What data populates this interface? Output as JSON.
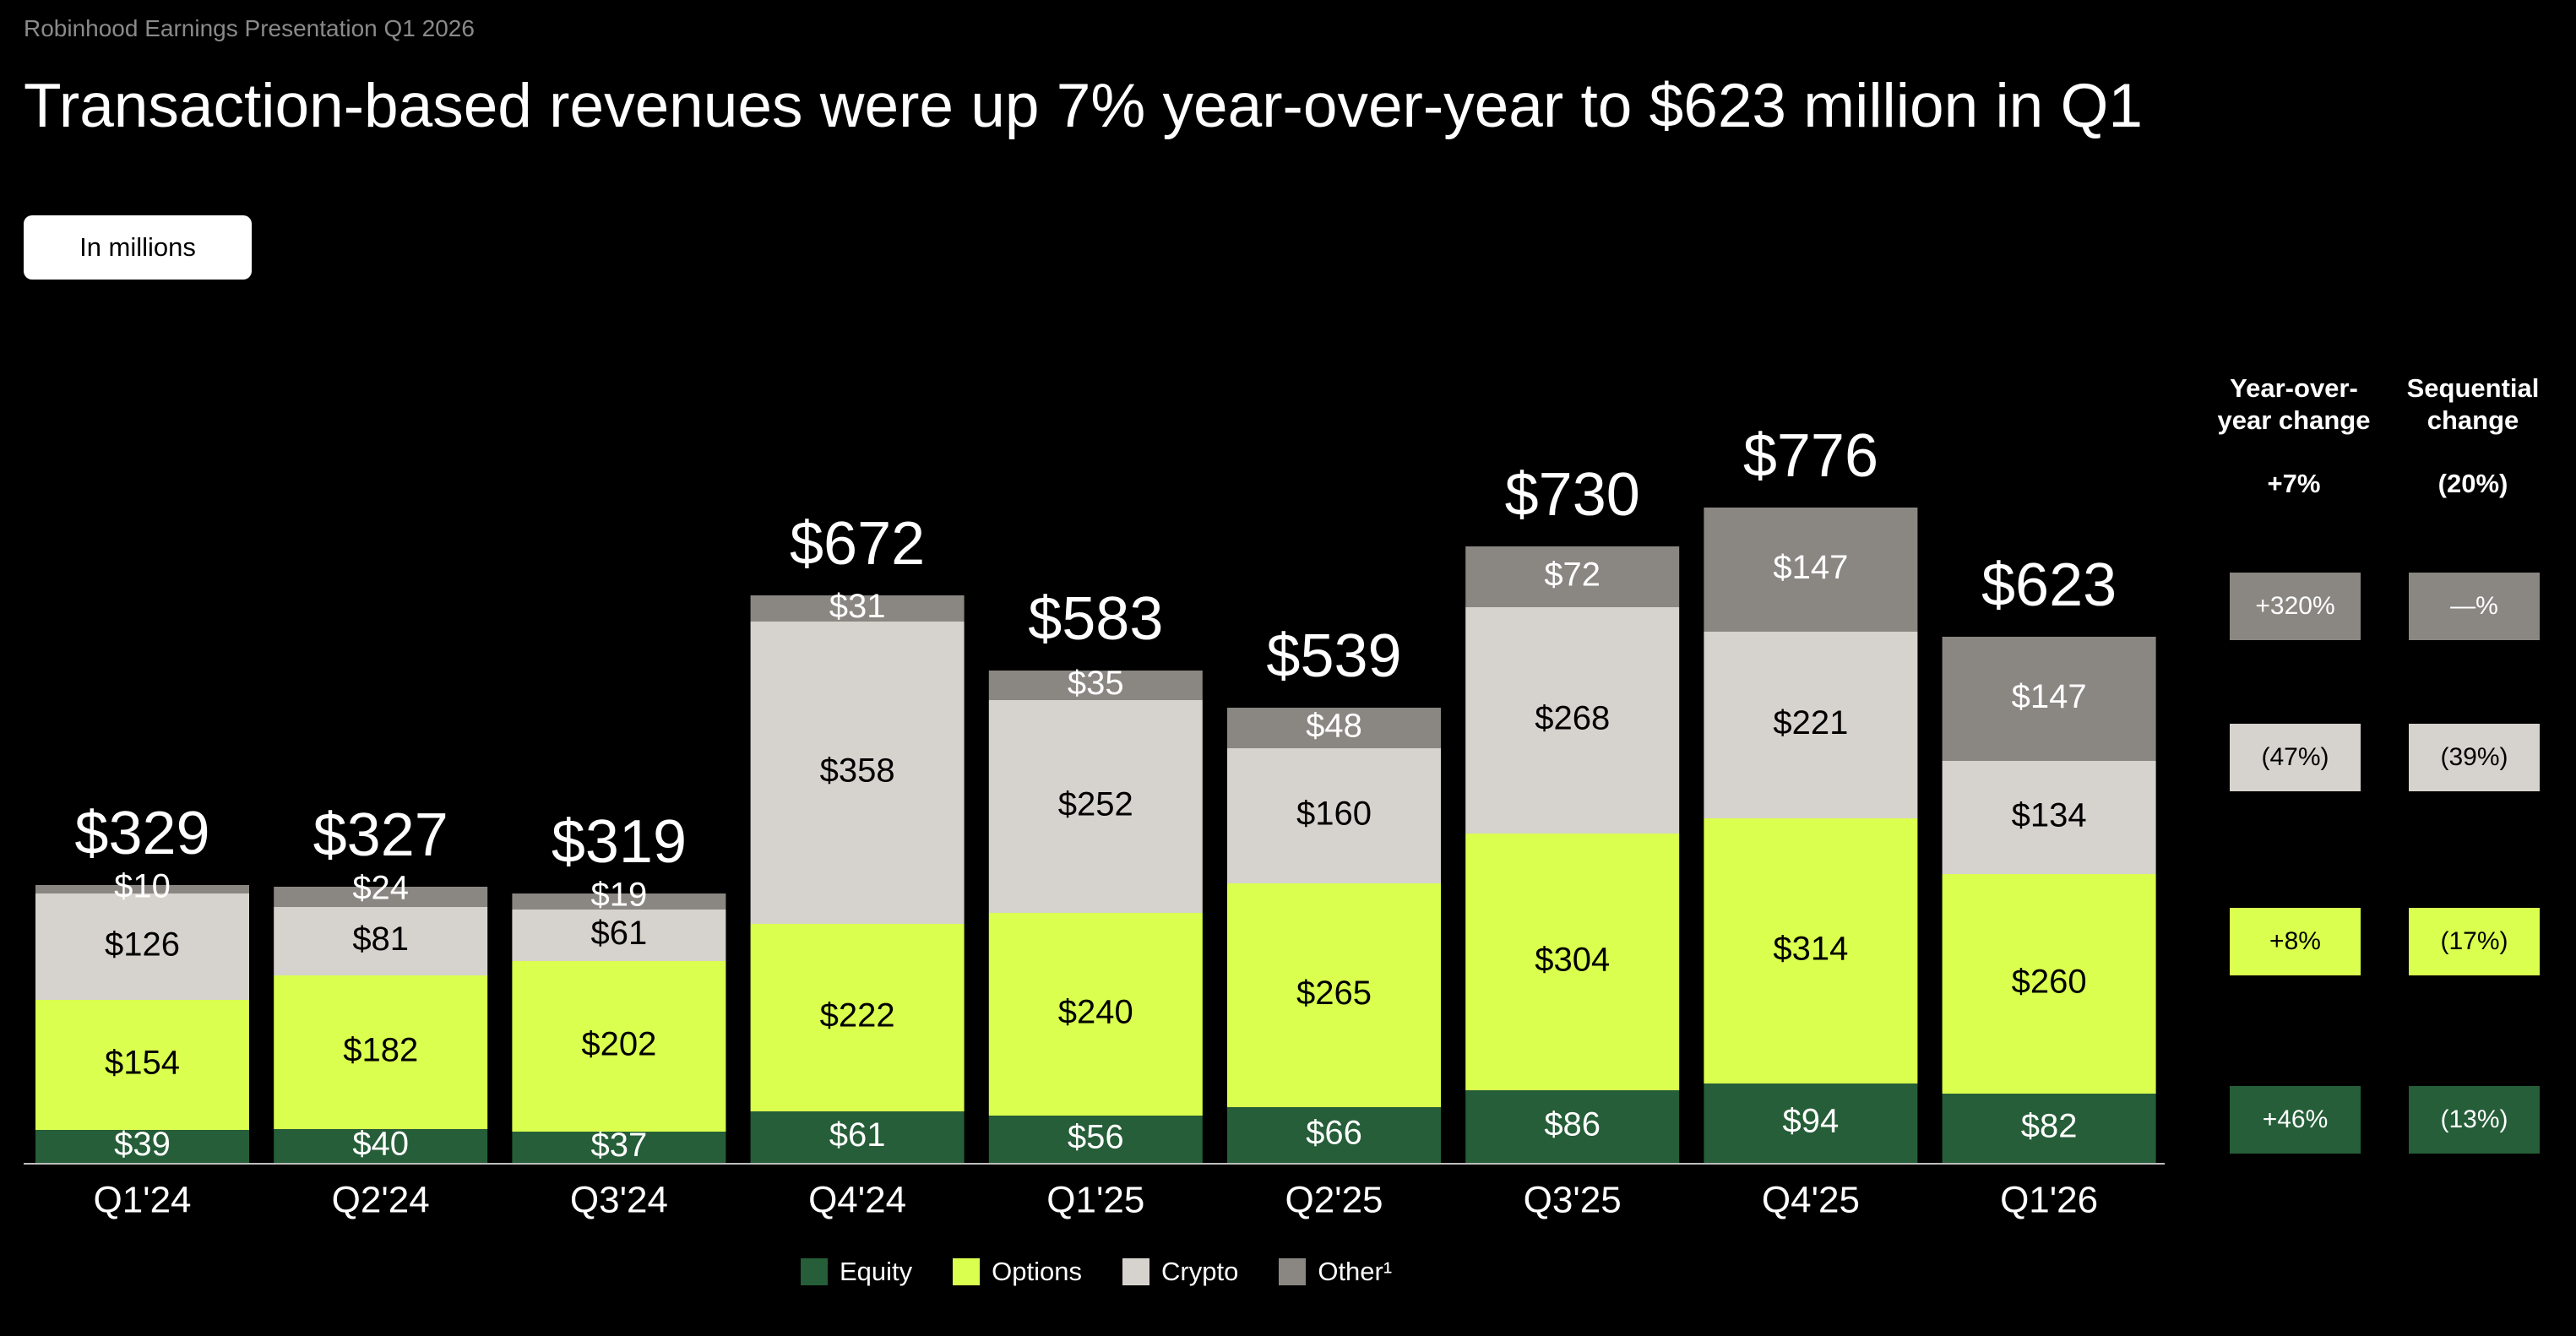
{
  "header": {
    "supertitle": "Robinhood Earnings Presentation Q1 2026",
    "title": "Transaction-based revenues were up 7% year-over-year to $623 million in Q1",
    "unit_label": "In millions"
  },
  "colors": {
    "background": "#000000",
    "equity": "#255E38",
    "options": "#DAFF4F",
    "crypto": "#D6D2CD",
    "other": "#8A8783"
  },
  "chart_data": {
    "type": "bar",
    "stacked": true,
    "categories": [
      "Q1'24",
      "Q2'24",
      "Q3'24",
      "Q4'24",
      "Q1'25",
      "Q2'25",
      "Q3'25",
      "Q4'25",
      "Q1'26"
    ],
    "series": [
      {
        "name": "Equity",
        "values": [
          39,
          40,
          37,
          61,
          56,
          66,
          86,
          94,
          82
        ]
      },
      {
        "name": "Options",
        "values": [
          154,
          182,
          202,
          222,
          240,
          265,
          304,
          314,
          260
        ]
      },
      {
        "name": "Crypto",
        "values": [
          126,
          81,
          61,
          358,
          252,
          160,
          268,
          221,
          134
        ]
      },
      {
        "name": "Other¹",
        "values": [
          10,
          24,
          19,
          31,
          35,
          48,
          72,
          147,
          147
        ]
      }
    ],
    "value_labels": {
      "Equity": [
        "$39",
        "$40",
        "$37",
        "$61",
        "$56",
        "$66",
        "$86",
        "$94",
        "$82"
      ],
      "Options": [
        "$154",
        "$182",
        "$202",
        "$222",
        "$240",
        "$265",
        "$304",
        "$314",
        "$260"
      ],
      "Crypto": [
        "$126",
        "$81",
        "$61",
        "$358",
        "$252",
        "$160",
        "$268",
        "$221",
        "$134"
      ],
      "Other¹": [
        "$10",
        "$24",
        "$19",
        "$31",
        "$35",
        "$48",
        "$72",
        "$147",
        "$147"
      ]
    },
    "totals": [
      329,
      327,
      319,
      672,
      583,
      539,
      730,
      776,
      623
    ],
    "total_labels": [
      "$329",
      "$327",
      "$319",
      "$672",
      "$583",
      "$539",
      "$730",
      "$776",
      "$623"
    ],
    "ylim": [
      0,
      800
    ],
    "grid": false,
    "legend_position": "bottom-center"
  },
  "side_panel": {
    "headers": [
      "Year-over-year change",
      "Sequential change"
    ],
    "header_lines": [
      [
        "Year-over-",
        "year change"
      ],
      [
        "Sequential",
        "change"
      ]
    ],
    "totals": [
      "+7%",
      "(20%)"
    ],
    "rows": [
      {
        "series": "Other¹",
        "yoy": "+320%",
        "seq": "—%"
      },
      {
        "series": "Crypto",
        "yoy": "(47%)",
        "seq": "(39%)"
      },
      {
        "series": "Options",
        "yoy": "+8%",
        "seq": "(17%)"
      },
      {
        "series": "Equity",
        "yoy": "+46%",
        "seq": "(13%)"
      }
    ]
  },
  "legend": [
    {
      "label": "Equity",
      "color": "#255E38"
    },
    {
      "label": "Options",
      "color": "#DAFF4F"
    },
    {
      "label": "Crypto",
      "color": "#D6D2CD"
    },
    {
      "label": "Other¹",
      "color": "#8A8783"
    }
  ]
}
